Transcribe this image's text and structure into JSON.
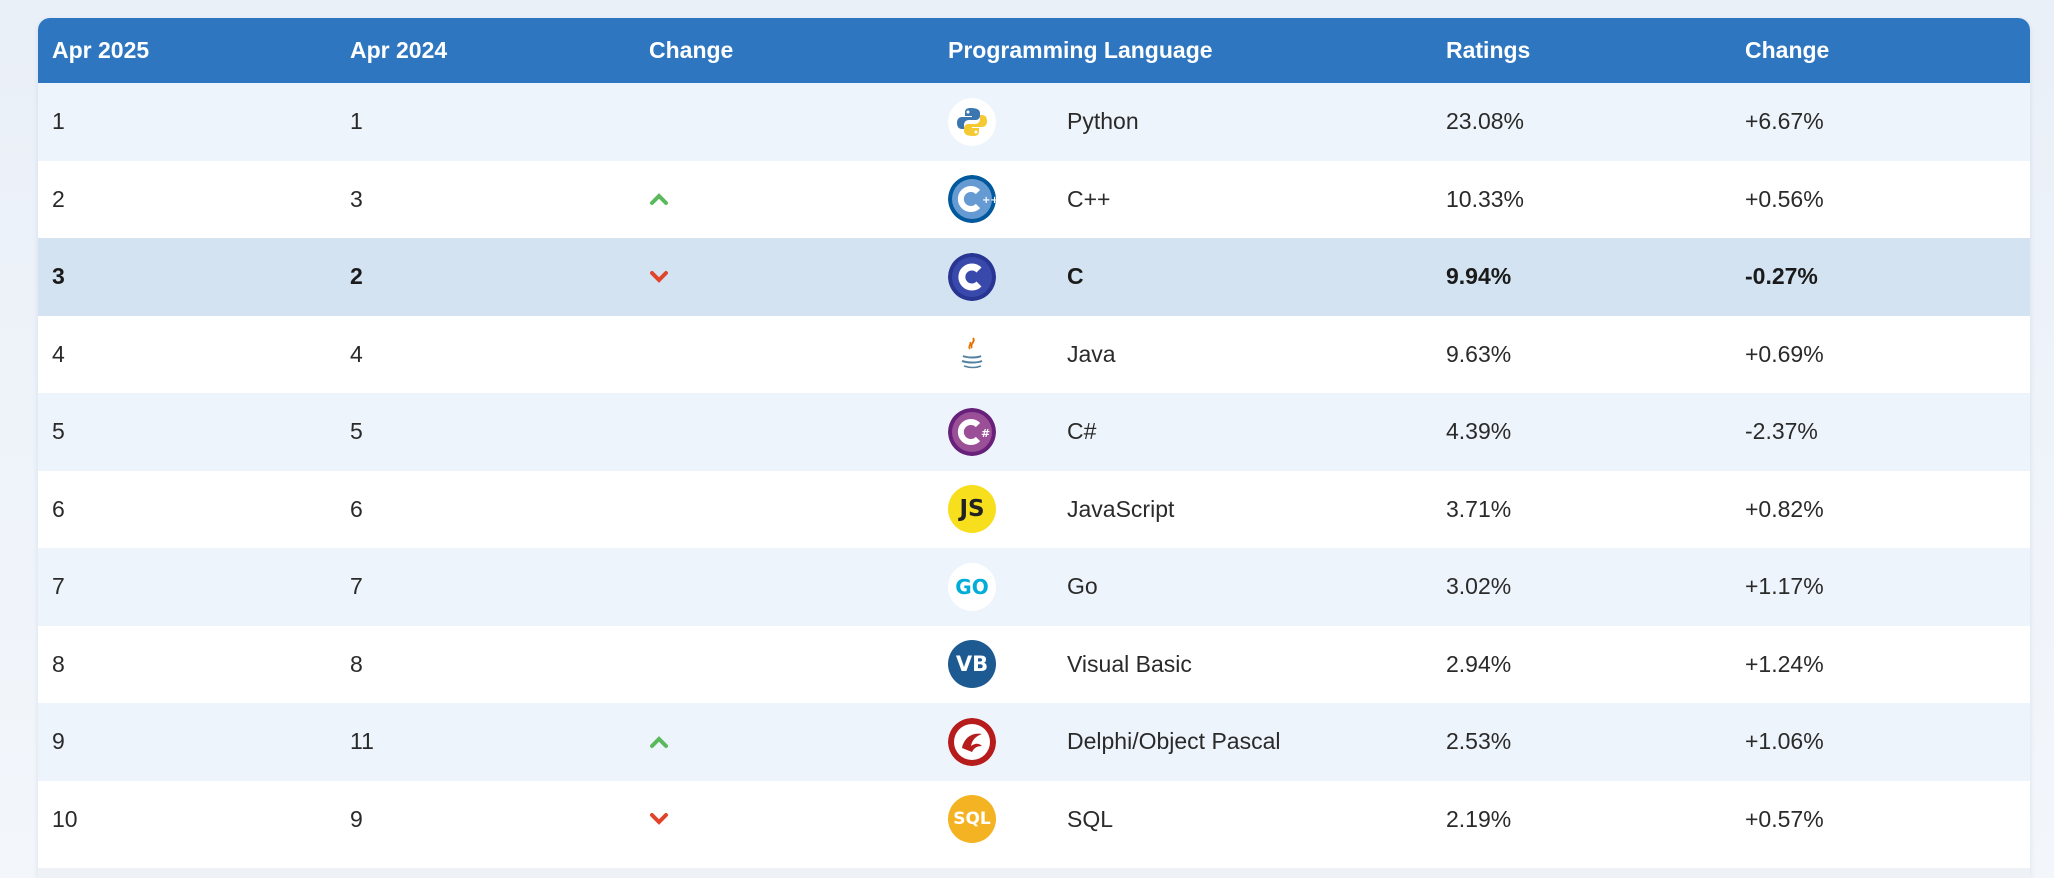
{
  "table": {
    "headers": {
      "current": "Apr 2025",
      "previous": "Apr 2024",
      "change": "Change",
      "language": "Programming Language",
      "ratings": "Ratings",
      "ratings_change": "Change"
    },
    "rows": [
      {
        "current": "1",
        "previous": "1",
        "trend": "none",
        "language": "Python",
        "logo": "python-icon",
        "rating": "23.08%",
        "change": "+6.67%"
      },
      {
        "current": "2",
        "previous": "3",
        "trend": "up",
        "language": "C++",
        "logo": "cplusplus-icon",
        "rating": "10.33%",
        "change": "+0.56%"
      },
      {
        "current": "3",
        "previous": "2",
        "trend": "down",
        "language": "C",
        "logo": "c-icon",
        "rating": "9.94%",
        "change": "-0.27%"
      },
      {
        "current": "4",
        "previous": "4",
        "trend": "none",
        "language": "Java",
        "logo": "java-icon",
        "rating": "9.63%",
        "change": "+0.69%"
      },
      {
        "current": "5",
        "previous": "5",
        "trend": "none",
        "language": "C#",
        "logo": "csharp-icon",
        "rating": "4.39%",
        "change": "-2.37%"
      },
      {
        "current": "6",
        "previous": "6",
        "trend": "none",
        "language": "JavaScript",
        "logo": "javascript-icon",
        "logo_text": "JS",
        "rating": "3.71%",
        "change": "+0.82%"
      },
      {
        "current": "7",
        "previous": "7",
        "trend": "none",
        "language": "Go",
        "logo": "go-icon",
        "logo_text": "GO",
        "rating": "3.02%",
        "change": "+1.17%"
      },
      {
        "current": "8",
        "previous": "8",
        "trend": "none",
        "language": "Visual Basic",
        "logo": "visual-basic-icon",
        "logo_text": "VB",
        "rating": "2.94%",
        "change": "+1.24%"
      },
      {
        "current": "9",
        "previous": "11",
        "trend": "up",
        "language": "Delphi/Object Pascal",
        "logo": "delphi-icon",
        "rating": "2.53%",
        "change": "+1.06%"
      },
      {
        "current": "10",
        "previous": "9",
        "trend": "down",
        "language": "SQL",
        "logo": "sql-icon",
        "logo_text": "SQL",
        "rating": "2.19%",
        "change": "+0.57%"
      }
    ]
  },
  "colors": {
    "header": "#2e77c0",
    "up": "#5cb85c",
    "down": "#e0452b",
    "highlight_row": "#d3e3f2"
  }
}
